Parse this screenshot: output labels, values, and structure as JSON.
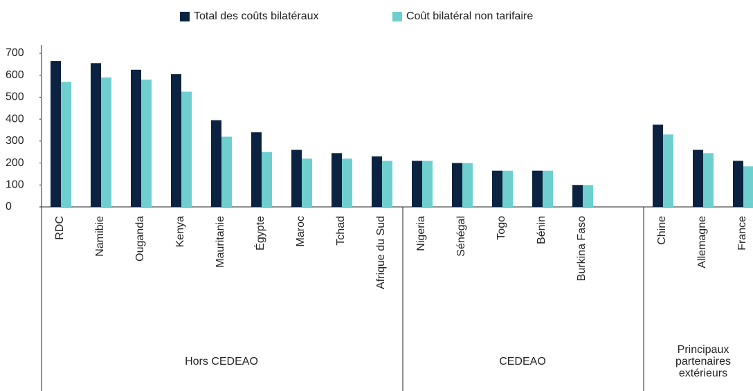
{
  "chart_data": {
    "type": "bar",
    "categories": [
      "RDC",
      "Namibie",
      "Ouganda",
      "Kenya",
      "Mauritanie",
      "Égypte",
      "Maroc",
      "Tchad",
      "Afrique du Sud",
      "Nigeria",
      "Sénégal",
      "Togo",
      "Bénin",
      "Burkina Faso",
      null,
      "Chine",
      "Allemagne",
      "France"
    ],
    "series": [
      {
        "name": "Total des coûts bilatéraux",
        "color": "#0b2341",
        "values": [
          665,
          655,
          625,
          605,
          395,
          340,
          260,
          245,
          230,
          210,
          200,
          165,
          165,
          100,
          null,
          375,
          260,
          210
        ]
      },
      {
        "name": "Coût bilatéral non tarifaire",
        "color": "#6fcfcf",
        "values": [
          570,
          590,
          580,
          525,
          320,
          250,
          220,
          220,
          210,
          210,
          200,
          165,
          165,
          100,
          null,
          330,
          245,
          185
        ]
      }
    ],
    "groups": [
      [
        "Hors CEDEAO"
      ],
      [
        "CEDEAO"
      ],
      [
        "Principaux",
        "partenaires",
        "extérieurs"
      ]
    ],
    "ylim": [
      0,
      700
    ],
    "yticks": [
      0,
      100,
      200,
      300,
      400,
      500,
      600,
      700
    ],
    "legend": "top",
    "grid": false
  }
}
